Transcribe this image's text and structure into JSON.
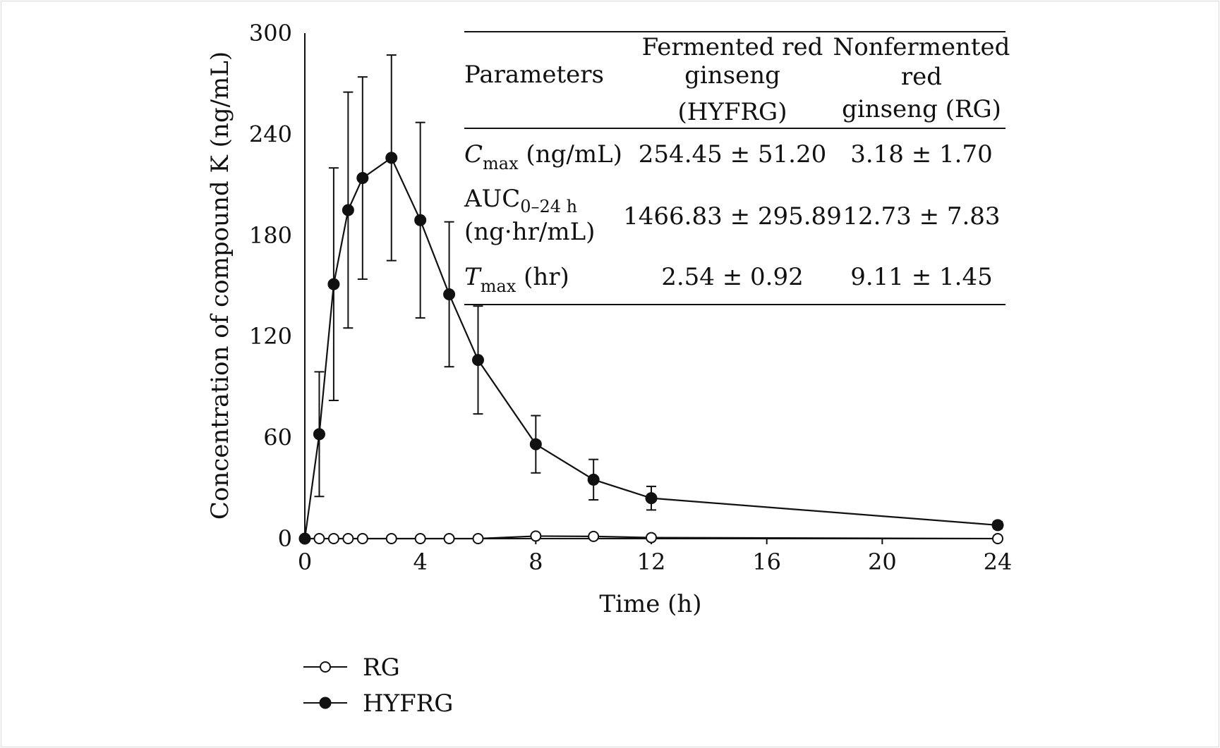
{
  "chart_data": {
    "type": "line",
    "xlabel": "Time (h)",
    "ylabel": "Concentration of compound K (ng/mL)",
    "xlim": [
      0,
      24
    ],
    "ylim": [
      0,
      300
    ],
    "xticks": [
      "0",
      "4",
      "8",
      "12",
      "16",
      "20",
      "24"
    ],
    "xtick_values": [
      0,
      4,
      8,
      12,
      16,
      20,
      24
    ],
    "yticks": [
      "0",
      "60",
      "120",
      "180",
      "240",
      "300"
    ],
    "ytick_values": [
      0,
      60,
      120,
      180,
      240,
      300
    ],
    "series": [
      {
        "name": "RG",
        "marker": "open-circle",
        "x": [
          0,
          0.5,
          1,
          1.5,
          2,
          3,
          4,
          5,
          6,
          8,
          10,
          12,
          24
        ],
        "y": [
          0,
          0,
          0,
          0,
          0,
          0,
          0,
          0,
          0,
          1.5,
          1.3,
          0.6,
          0
        ]
      },
      {
        "name": "HYFRG",
        "marker": "filled-circle",
        "x": [
          0,
          0.5,
          1,
          1.5,
          2,
          3,
          4,
          5,
          6,
          8,
          10,
          12,
          24
        ],
        "y": [
          0,
          62,
          151,
          195,
          214,
          226,
          189,
          145,
          106,
          56,
          35,
          24,
          8
        ],
        "err": [
          0,
          37,
          69,
          70,
          60,
          61,
          58,
          43,
          32,
          17,
          12,
          7,
          2
        ]
      }
    ],
    "legend": {
      "position": "bottom-left"
    }
  },
  "table": {
    "header": {
      "col1": "Parameters",
      "col2_line1": "Fermented red",
      "col2_line2": "ginseng",
      "col2_line3": "(HYFRG)",
      "col3_line1": "Nonfermented",
      "col3_line2": "red",
      "col3_line3": "ginseng (RG)"
    },
    "rows": [
      {
        "param_main": "C",
        "param_sub": "max",
        "param_rest": " (ng/mL)",
        "hyfrg": "254.45 ± 51.20",
        "rg": "3.18 ± 1.70"
      },
      {
        "param_main": "AUC",
        "param_sub": "0–24 h",
        "param_line2": "(ng·hr/mL)",
        "hyfrg": "1466.83 ± 295.89",
        "rg": "12.73 ± 7.83"
      },
      {
        "param_main": "T",
        "param_sub": "max",
        "param_rest": " (hr)",
        "hyfrg": "2.54 ± 0.92",
        "rg": "9.11 ± 1.45"
      }
    ]
  }
}
